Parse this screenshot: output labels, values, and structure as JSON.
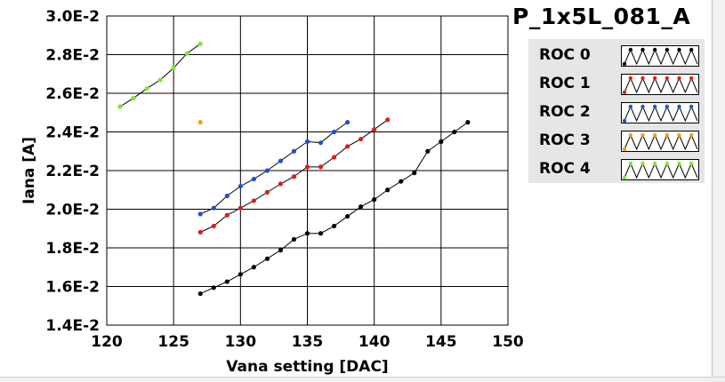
{
  "graph_title": "P_1x5L_081_A",
  "legend": [
    {
      "label": "ROC 0",
      "color": "#000000"
    },
    {
      "label": "ROC 1",
      "color": "#e01c1c"
    },
    {
      "label": "ROC 2",
      "color": "#1f4fd6"
    },
    {
      "label": "ROC 3",
      "color": "#f2a01a"
    },
    {
      "label": "ROC 4",
      "color": "#7ce82c"
    }
  ],
  "chart_data": {
    "type": "line",
    "title": "P_1x5L_081_A",
    "xlabel": "Vana setting [DAC]",
    "ylabel": "Iana [A]",
    "xlim": [
      120,
      150
    ],
    "ylim": [
      0.014,
      0.03
    ],
    "x_ticks": [
      120,
      125,
      130,
      135,
      140,
      145,
      150
    ],
    "x_tick_labels": [
      "120",
      "125",
      "130",
      "135",
      "140",
      "145",
      "150"
    ],
    "y_ticks": [
      0.014,
      0.016,
      0.018,
      0.02,
      0.022,
      0.024,
      0.026,
      0.028,
      0.03
    ],
    "y_tick_labels": [
      "1.4E-2",
      "1.6E-2",
      "1.8E-2",
      "2.0E-2",
      "2.2E-2",
      "2.4E-2",
      "2.6E-2",
      "2.8E-2",
      "3.0E-2"
    ],
    "grid": true,
    "legend_position": "right",
    "series": [
      {
        "name": "ROC 0",
        "color": "#000000",
        "x": [
          127,
          128,
          129,
          130,
          131,
          132,
          133,
          134,
          135,
          136,
          137,
          138,
          139,
          140,
          141,
          142,
          143,
          144,
          145,
          146,
          147
        ],
        "y": [
          0.01563,
          0.01594,
          0.01625,
          0.01663,
          0.017,
          0.01744,
          0.01788,
          0.01844,
          0.01875,
          0.01875,
          0.01913,
          0.01963,
          0.02013,
          0.0205,
          0.021,
          0.02144,
          0.02188,
          0.023,
          0.0235,
          0.024,
          0.0245
        ]
      },
      {
        "name": "ROC 1",
        "color": "#e01c1c",
        "x": [
          127,
          128,
          129,
          130,
          131,
          132,
          133,
          134,
          135,
          136,
          137,
          138,
          139,
          140,
          141
        ],
        "y": [
          0.01881,
          0.01913,
          0.01969,
          0.02006,
          0.02044,
          0.02088,
          0.02131,
          0.02169,
          0.02219,
          0.02219,
          0.02269,
          0.02325,
          0.02363,
          0.02413,
          0.02463
        ]
      },
      {
        "name": "ROC 2",
        "color": "#1f4fd6",
        "x": [
          127,
          128,
          129,
          130,
          131,
          132,
          133,
          134,
          135,
          136,
          137,
          138
        ],
        "y": [
          0.01975,
          0.02006,
          0.02069,
          0.02119,
          0.02156,
          0.022,
          0.0225,
          0.023,
          0.0235,
          0.02344,
          0.024,
          0.0245
        ]
      },
      {
        "name": "ROC 3",
        "color": "#f2a01a",
        "x": [
          127
        ],
        "y": [
          0.0245
        ]
      },
      {
        "name": "ROC 4",
        "color": "#7ce82c",
        "x": [
          121,
          122,
          123,
          124,
          125,
          126,
          127
        ],
        "y": [
          0.02531,
          0.02575,
          0.02625,
          0.02669,
          0.02731,
          0.02806,
          0.02856
        ]
      }
    ]
  }
}
